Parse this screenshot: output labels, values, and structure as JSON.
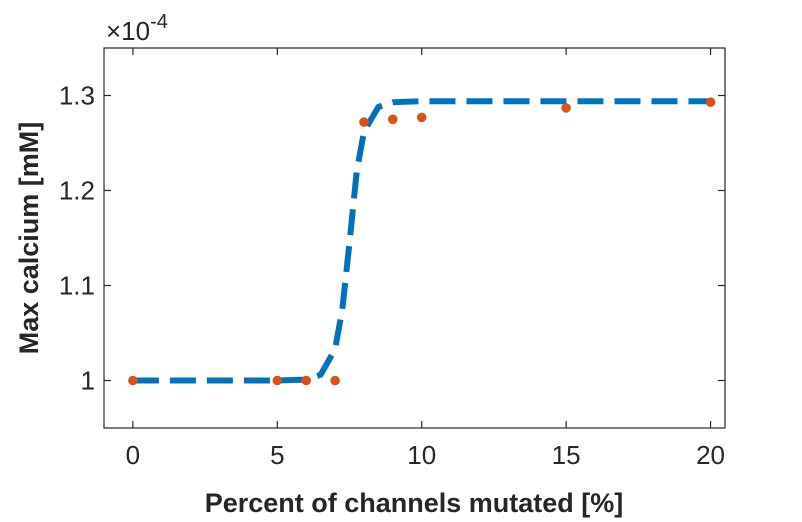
{
  "chart_data": {
    "type": "scatter",
    "xlabel": "Percent of channels mutated [%]",
    "ylabel": "Max calcium [mM]",
    "xlim": [
      -1,
      20.5
    ],
    "ylim": [
      0.95,
      1.35
    ],
    "y_exponent": {
      "times": "×10",
      "power": "-4"
    },
    "x_ticks": [
      0,
      5,
      10,
      15,
      20
    ],
    "x_tick_labels": [
      "0",
      "5",
      "10",
      "15",
      "20"
    ],
    "y_ticks": [
      1.0,
      1.1,
      1.2,
      1.3
    ],
    "y_tick_labels": [
      "1",
      "1.1",
      "1.2",
      "1.3"
    ],
    "grid": false,
    "series": [
      {
        "kind": "points",
        "color": "#D95319",
        "x": [
          0,
          5,
          6,
          7,
          8,
          9,
          10,
          15,
          20
        ],
        "y": [
          1.0,
          1.0,
          1.0,
          1.0,
          1.272,
          1.275,
          1.277,
          1.287,
          1.293
        ]
      },
      {
        "kind": "fit-line",
        "style": "dashed",
        "color": "#0072BD",
        "x": [
          0.0,
          5.0,
          6.0,
          6.5,
          7.0,
          7.25,
          7.5,
          7.75,
          8.0,
          8.5,
          9.0,
          10.0,
          15.0,
          20.0
        ],
        "y": [
          1.0,
          1.0,
          1.001,
          1.006,
          1.033,
          1.075,
          1.145,
          1.22,
          1.262,
          1.288,
          1.293,
          1.294,
          1.294,
          1.294
        ]
      }
    ]
  }
}
